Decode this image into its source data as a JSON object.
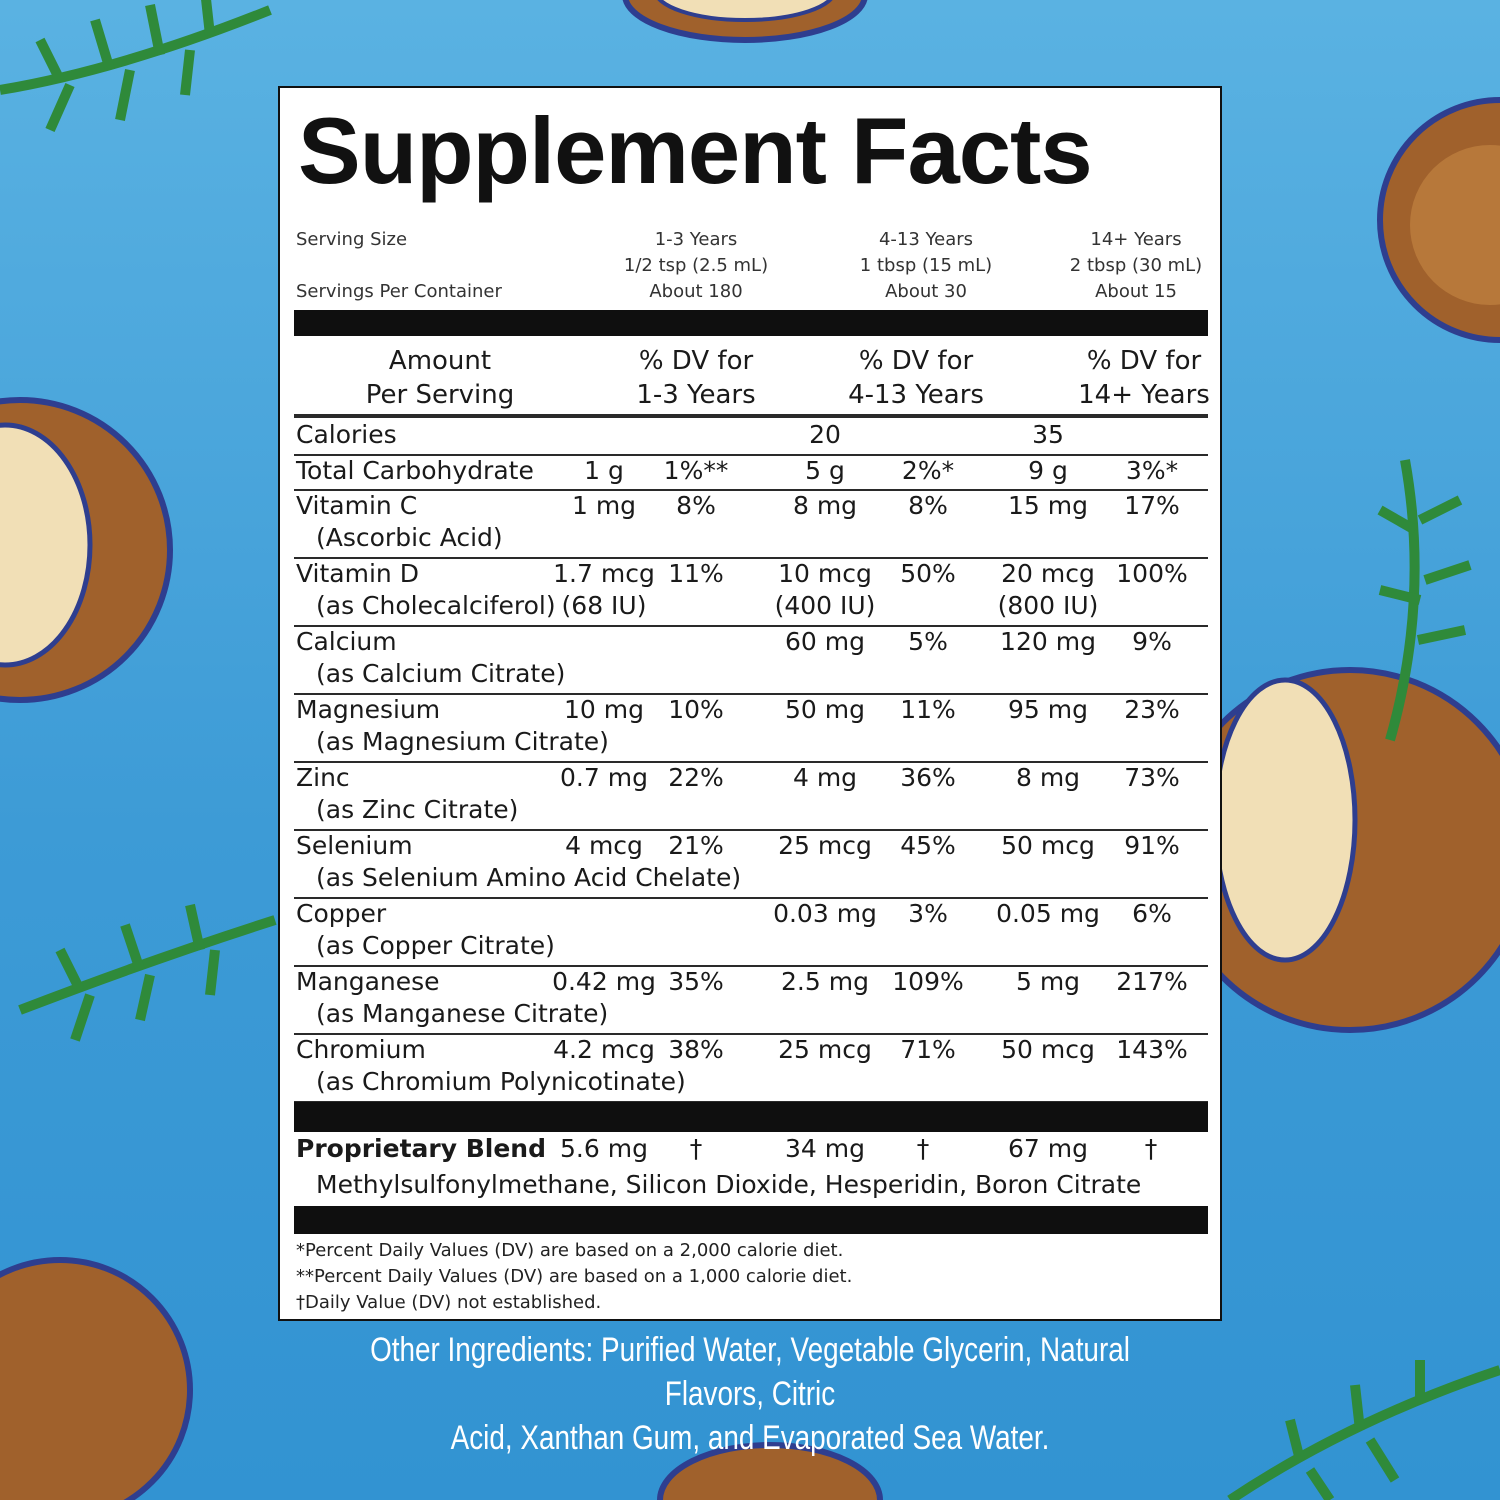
{
  "title": "Supplement Facts",
  "serving": {
    "serving_size_label": "Serving Size",
    "servings_per_container_label": "Servings Per Container",
    "columns": [
      {
        "age": "1-3 Years",
        "size": "1/2 tsp (2.5 mL)",
        "per_container": "About 180"
      },
      {
        "age": "4-13 Years",
        "size": "1 tbsp (15 mL)",
        "per_container": "About 30"
      },
      {
        "age": "14+ Years",
        "size": "2 tbsp (30 mL)",
        "per_container": "About 15"
      }
    ]
  },
  "header": {
    "amount": [
      "Amount",
      "Per Serving"
    ],
    "dv_cols": [
      [
        "% DV for",
        "1-3 Years"
      ],
      [
        "% DV for",
        "4-13 Years"
      ],
      [
        "% DV for",
        "14+ Years"
      ]
    ]
  },
  "nutrients": [
    {
      "name": "Calories",
      "sub": "",
      "values": [
        [
          "",
          ""
        ],
        [
          "20",
          ""
        ],
        [
          "35",
          ""
        ]
      ]
    },
    {
      "name": "Total Carbohydrate",
      "sub": "",
      "values": [
        [
          "1 g",
          "1%**"
        ],
        [
          "5 g",
          "2%*"
        ],
        [
          "9 g",
          "3%*"
        ]
      ]
    },
    {
      "name": "Vitamin C",
      "sub": "(Ascorbic Acid)",
      "values": [
        [
          "1 mg",
          "8%"
        ],
        [
          "8 mg",
          "8%"
        ],
        [
          "15 mg",
          "17%"
        ]
      ]
    },
    {
      "name": "Vitamin D",
      "sub": "(as Cholecalciferol)",
      "values": [
        [
          "1.7 mcg",
          "11%",
          "(68 IU)"
        ],
        [
          "10 mcg",
          "50%",
          "(400 IU)"
        ],
        [
          "20 mcg",
          "100%",
          "(800 IU)"
        ]
      ]
    },
    {
      "name": "Calcium",
      "sub": "(as Calcium Citrate)",
      "values": [
        [
          "",
          ""
        ],
        [
          "60 mg",
          "5%"
        ],
        [
          "120 mg",
          "9%"
        ]
      ]
    },
    {
      "name": "Magnesium",
      "sub": "(as Magnesium Citrate)",
      "values": [
        [
          "10 mg",
          "10%"
        ],
        [
          "50 mg",
          "11%"
        ],
        [
          "95 mg",
          "23%"
        ]
      ]
    },
    {
      "name": "Zinc",
      "sub": "(as Zinc Citrate)",
      "values": [
        [
          "0.7 mg",
          "22%"
        ],
        [
          "4 mg",
          "36%"
        ],
        [
          "8 mg",
          "73%"
        ]
      ]
    },
    {
      "name": "Selenium",
      "sub": "(as Selenium Amino Acid Chelate)",
      "values": [
        [
          "4 mcg",
          "21%"
        ],
        [
          "25 mcg",
          "45%"
        ],
        [
          "50 mcg",
          "91%"
        ]
      ]
    },
    {
      "name": "Copper",
      "sub": "(as Copper Citrate)",
      "values": [
        [
          "",
          ""
        ],
        [
          "0.03 mg",
          "3%"
        ],
        [
          "0.05 mg",
          "6%"
        ]
      ]
    },
    {
      "name": "Manganese",
      "sub": "(as Manganese Citrate)",
      "values": [
        [
          "0.42 mg",
          "35%"
        ],
        [
          "2.5 mg",
          "109%"
        ],
        [
          "5 mg",
          "217%"
        ]
      ]
    },
    {
      "name": "Chromium",
      "sub": "(as Chromium Polynicotinate)",
      "values": [
        [
          "4.2 mcg",
          "38%"
        ],
        [
          "25 mcg",
          "71%"
        ],
        [
          "50 mcg",
          "143%"
        ]
      ]
    }
  ],
  "blend": {
    "name": "Proprietary Blend",
    "values": [
      [
        "5.6 mg",
        "†"
      ],
      [
        "34 mg",
        "†"
      ],
      [
        "67 mg",
        "†"
      ]
    ],
    "ingredients": "Methylsulfonylmethane, Silicon Dioxide, Hesperidin, Boron Citrate"
  },
  "footnotes": [
    "*Percent Daily Values (DV) are based on a 2,000 calorie diet.",
    "**Percent Daily Values (DV) are based on a 1,000 calorie diet.",
    "†Daily Value (DV) not established."
  ],
  "other_ingredients": [
    "Other Ingredients: Purified Water, Vegetable Glycerin, Natural Flavors, Citric",
    "Acid, Xanthan Gum, and Evaporated Sea Water."
  ]
}
